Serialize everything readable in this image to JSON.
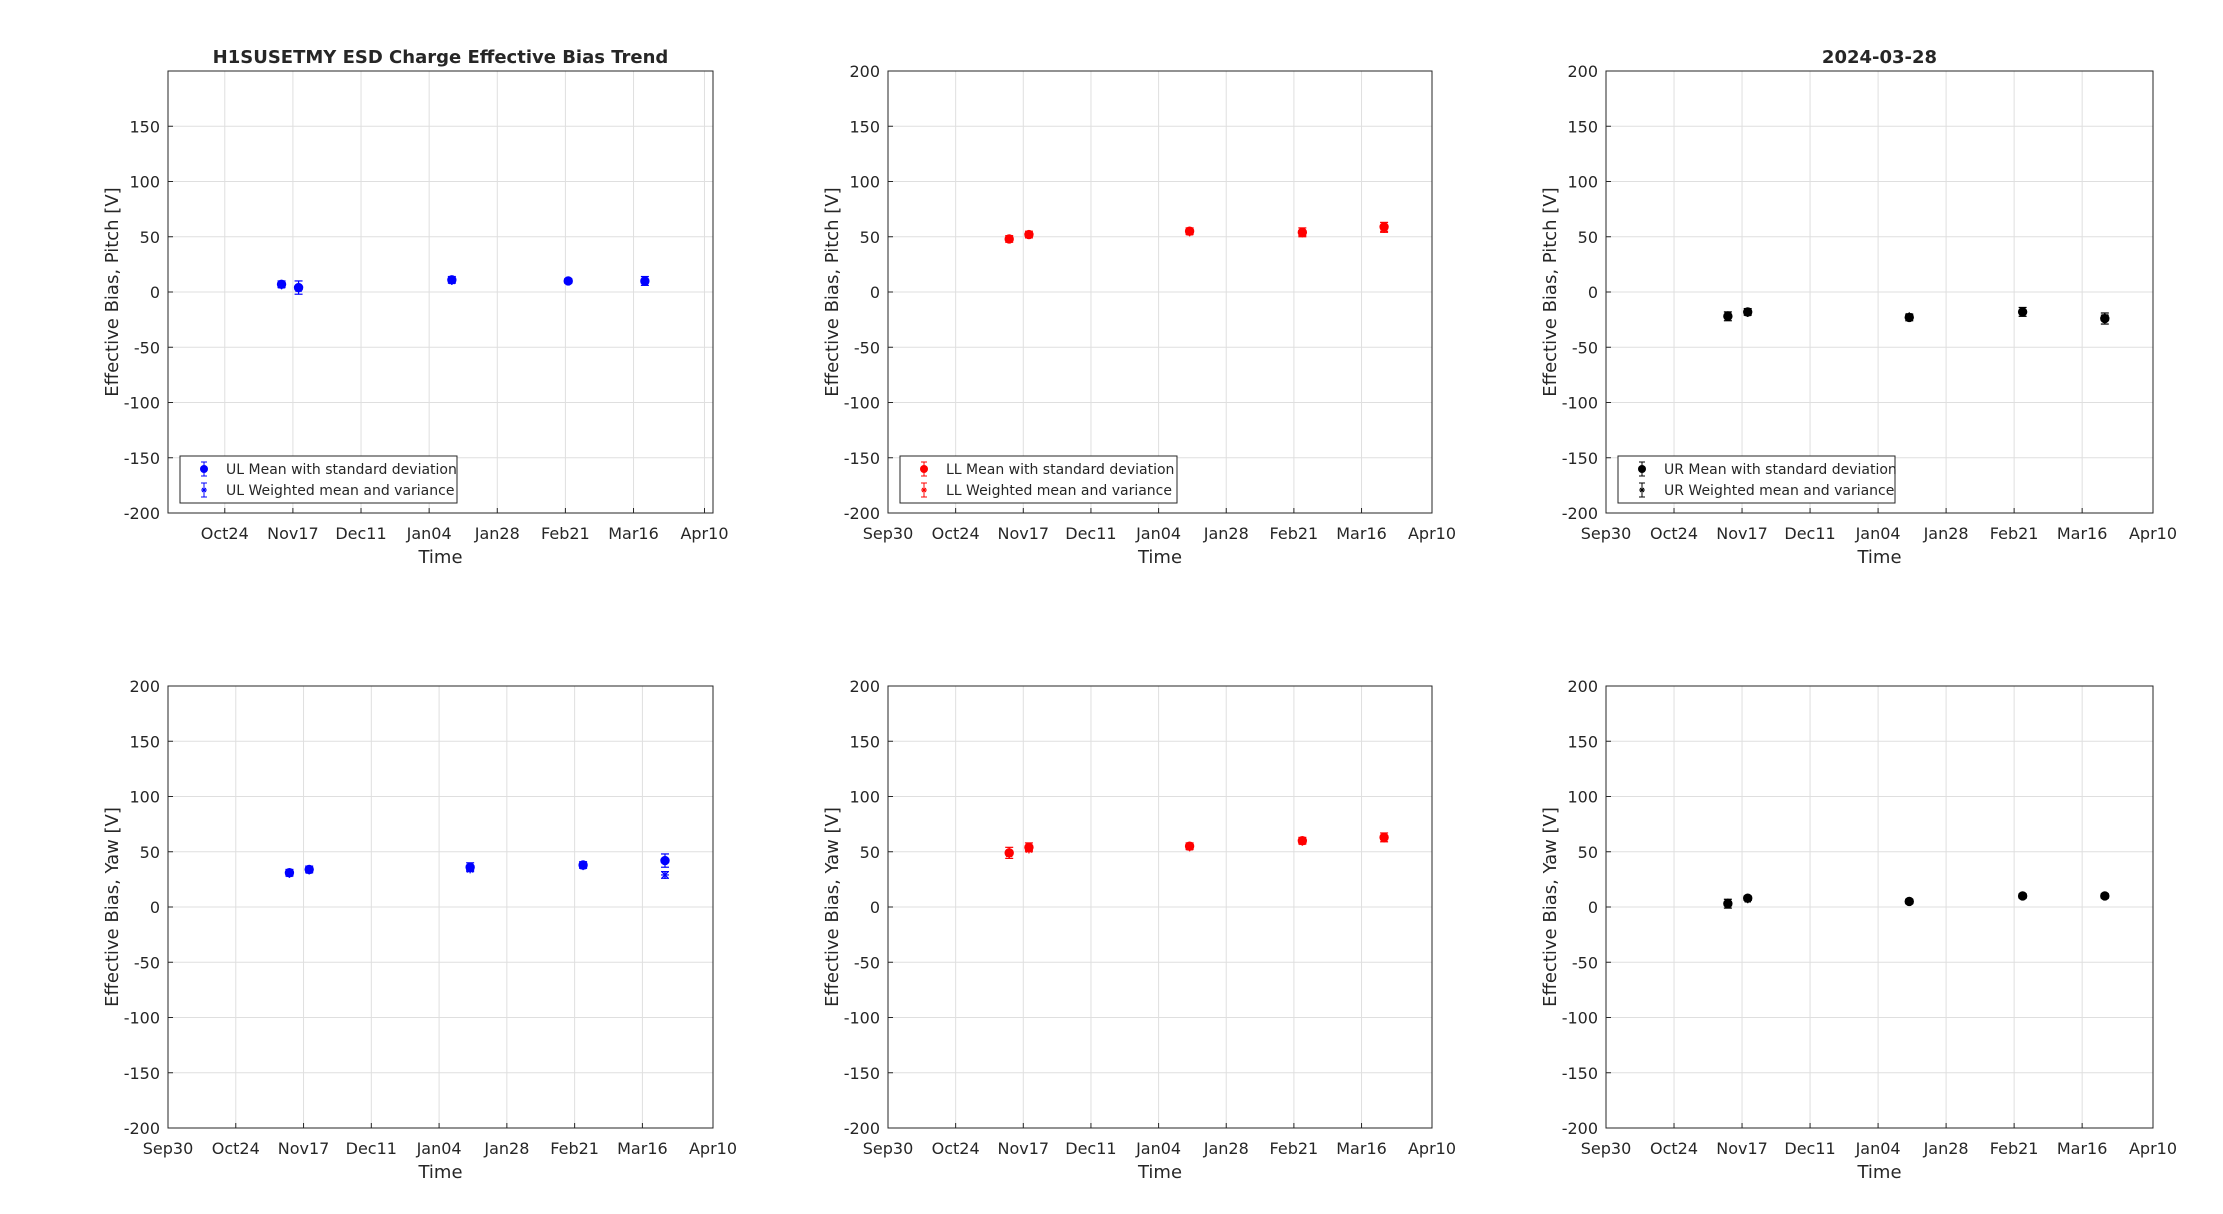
{
  "figure": {
    "background": "#ffffff"
  },
  "chart_data": [
    {
      "type": "scatter",
      "title": "H1SUSETMY ESD Charge Effective Bias Trend",
      "xlabel": "Time",
      "ylabel": "Effective Bias, Pitch [V]",
      "ylim": [
        -200,
        200
      ],
      "yticks": [
        -200,
        -150,
        -100,
        -50,
        0,
        50,
        100,
        150
      ],
      "xlim": [
        "2023-10-04",
        "2024-04-13"
      ],
      "xticks": [
        "Oct24",
        "Nov17",
        "Dec11",
        "Jan04",
        "Jan28",
        "Feb21",
        "Mar16",
        "Apr10"
      ],
      "grid": true,
      "legend": "bottom-left",
      "color": "#0000ff",
      "series": [
        {
          "name": "UL Mean with standard deviation",
          "marker": "filled-circle",
          "points": [
            [
              "2023-11-13",
              7,
              3
            ],
            [
              "2023-11-19",
              4,
              6
            ],
            [
              "2024-01-12",
              11,
              3
            ],
            [
              "2024-02-22",
              10,
              2
            ],
            [
              "2024-03-20",
              10,
              4
            ]
          ]
        },
        {
          "name": "UL Weighted mean and variance",
          "marker": "star",
          "points": [
            [
              "2023-11-13",
              6,
              1
            ],
            [
              "2023-11-19",
              3,
              1
            ],
            [
              "2024-01-12",
              10,
              1
            ],
            [
              "2024-02-22",
              10,
              1
            ],
            [
              "2024-03-20",
              9,
              1
            ]
          ]
        }
      ]
    },
    {
      "type": "scatter",
      "title": "",
      "xlabel": "Time",
      "ylabel": "Effective Bias, Pitch [V]",
      "ylim": [
        -200,
        200
      ],
      "yticks": [
        -200,
        -150,
        -100,
        -50,
        0,
        50,
        100,
        150,
        200
      ],
      "xlim": [
        "2023-09-30",
        "2024-04-10"
      ],
      "xticks": [
        "Sep30",
        "Oct24",
        "Nov17",
        "Dec11",
        "Jan04",
        "Jan28",
        "Feb21",
        "Mar16",
        "Apr10"
      ],
      "grid": true,
      "legend": "bottom-left",
      "color": "#ff0000",
      "series": [
        {
          "name": "LL Mean with standard deviation",
          "marker": "filled-circle",
          "points": [
            [
              "2023-11-12",
              48,
              3
            ],
            [
              "2023-11-19",
              52,
              3
            ],
            [
              "2024-01-15",
              55,
              3
            ],
            [
              "2024-02-24",
              54,
              4
            ],
            [
              "2024-03-24",
              59,
              4
            ]
          ]
        },
        {
          "name": "LL Weighted mean and variance",
          "marker": "star",
          "points": [
            [
              "2023-11-12",
              48,
              1
            ],
            [
              "2023-11-19",
              52,
              1
            ],
            [
              "2024-01-15",
              54,
              1
            ],
            [
              "2024-02-24",
              53,
              2
            ],
            [
              "2024-03-24",
              57,
              3
            ]
          ]
        }
      ]
    },
    {
      "type": "scatter",
      "title": "2024-03-28",
      "xlabel": "Time",
      "ylabel": "Effective Bias, Pitch [V]",
      "ylim": [
        -200,
        200
      ],
      "yticks": [
        -200,
        -150,
        -100,
        -50,
        0,
        50,
        100,
        150,
        200
      ],
      "xlim": [
        "2023-09-30",
        "2024-04-10"
      ],
      "xticks": [
        "Sep30",
        "Oct24",
        "Nov17",
        "Dec11",
        "Jan04",
        "Jan28",
        "Feb21",
        "Mar16",
        "Apr10"
      ],
      "grid": true,
      "legend": "bottom-left",
      "color": "#000000",
      "series": [
        {
          "name": "UR Mean with standard deviation",
          "marker": "filled-circle",
          "points": [
            [
              "2023-11-12",
              -22,
              4
            ],
            [
              "2023-11-19",
              -18,
              3
            ],
            [
              "2024-01-15",
              -23,
              3
            ],
            [
              "2024-02-24",
              -18,
              4
            ],
            [
              "2024-03-24",
              -24,
              5
            ]
          ]
        },
        {
          "name": "UR Weighted mean and variance",
          "marker": "star",
          "points": [
            [
              "2023-11-12",
              -21,
              1
            ],
            [
              "2023-11-19",
              -19,
              1
            ],
            [
              "2024-01-15",
              -22,
              1
            ],
            [
              "2024-02-24",
              -18,
              1
            ],
            [
              "2024-03-24",
              -23,
              2
            ]
          ]
        }
      ]
    },
    {
      "type": "scatter",
      "title": "",
      "xlabel": "Time",
      "ylabel": "Effective Bias, Yaw [V]",
      "ylim": [
        -200,
        200
      ],
      "yticks": [
        -200,
        -150,
        -100,
        -50,
        0,
        50,
        100,
        150,
        200
      ],
      "xlim": [
        "2023-09-30",
        "2024-04-10"
      ],
      "xticks": [
        "Sep30",
        "Oct24",
        "Nov17",
        "Dec11",
        "Jan04",
        "Jan28",
        "Feb21",
        "Mar16",
        "Apr10"
      ],
      "grid": true,
      "legend": "none",
      "color": "#0000ff",
      "series": [
        {
          "name": "",
          "marker": "filled-circle",
          "points": [
            [
              "2023-11-12",
              31,
              3
            ],
            [
              "2023-11-19",
              34,
              3
            ],
            [
              "2024-01-15",
              36,
              4
            ],
            [
              "2024-02-24",
              38,
              3
            ],
            [
              "2024-03-24",
              42,
              6
            ]
          ]
        },
        {
          "name": "",
          "marker": "star",
          "points": [
            [
              "2023-11-12",
              30,
              1
            ],
            [
              "2023-11-19",
              33,
              1
            ],
            [
              "2024-01-15",
              34,
              1
            ],
            [
              "2024-02-24",
              37,
              1
            ],
            [
              "2024-03-24",
              29,
              3
            ]
          ]
        }
      ]
    },
    {
      "type": "scatter",
      "title": "",
      "xlabel": "Time",
      "ylabel": "Effective Bias, Yaw [V]",
      "ylim": [
        -200,
        200
      ],
      "yticks": [
        -200,
        -150,
        -100,
        -50,
        0,
        50,
        100,
        150,
        200
      ],
      "xlim": [
        "2023-09-30",
        "2024-04-10"
      ],
      "xticks": [
        "Sep30",
        "Oct24",
        "Nov17",
        "Dec11",
        "Jan04",
        "Jan28",
        "Feb21",
        "Mar16",
        "Apr10"
      ],
      "grid": true,
      "legend": "none",
      "color": "#ff0000",
      "series": [
        {
          "name": "",
          "marker": "filled-circle",
          "points": [
            [
              "2023-11-12",
              49,
              5
            ],
            [
              "2023-11-19",
              54,
              4
            ],
            [
              "2024-01-15",
              55,
              3
            ],
            [
              "2024-02-24",
              60,
              3
            ],
            [
              "2024-03-24",
              63,
              4
            ]
          ]
        },
        {
          "name": "",
          "marker": "star",
          "points": [
            [
              "2023-11-12",
              48,
              1
            ],
            [
              "2023-11-19",
              52,
              1
            ],
            [
              "2024-01-15",
              54,
              1
            ],
            [
              "2024-02-24",
              59,
              1
            ],
            [
              "2024-03-24",
              62,
              1
            ]
          ]
        }
      ]
    },
    {
      "type": "scatter",
      "title": "",
      "xlabel": "Time",
      "ylabel": "Effective Bias, Yaw [V]",
      "ylim": [
        -200,
        200
      ],
      "yticks": [
        -200,
        -150,
        -100,
        -50,
        0,
        50,
        100,
        150,
        200
      ],
      "xlim": [
        "2023-09-30",
        "2024-04-10"
      ],
      "xticks": [
        "Sep30",
        "Oct24",
        "Nov17",
        "Dec11",
        "Jan04",
        "Jan28",
        "Feb21",
        "Mar16",
        "Apr10"
      ],
      "grid": true,
      "legend": "none",
      "color": "#000000",
      "series": [
        {
          "name": "",
          "marker": "filled-circle",
          "points": [
            [
              "2023-11-12",
              3,
              4
            ],
            [
              "2023-11-19",
              8,
              2
            ],
            [
              "2024-01-15",
              5,
              2
            ],
            [
              "2024-02-24",
              10,
              2
            ],
            [
              "2024-03-24",
              10,
              2
            ]
          ]
        },
        {
          "name": "",
          "marker": "star",
          "points": [
            [
              "2023-11-12",
              4,
              1
            ],
            [
              "2023-11-19",
              7,
              1
            ],
            [
              "2024-01-15",
              5,
              1
            ],
            [
              "2024-02-24",
              10,
              1
            ],
            [
              "2024-03-24",
              10,
              1
            ]
          ]
        }
      ]
    }
  ]
}
